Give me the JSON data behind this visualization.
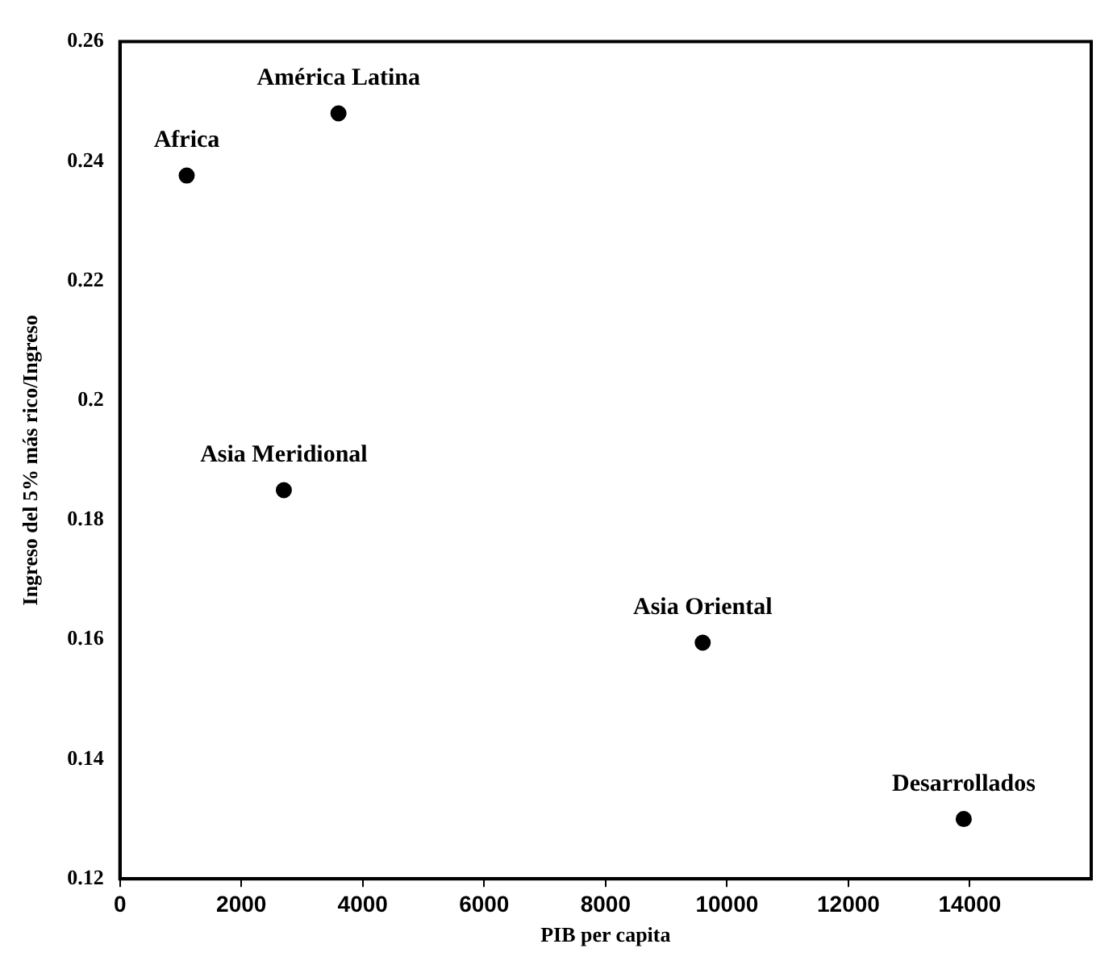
{
  "chart_data": {
    "type": "scatter",
    "xlabel": "PIB per capita",
    "ylabel": "Ingreso del 5% más rico/Ingreso",
    "x": [
      1100,
      3600,
      2700,
      9600,
      13900
    ],
    "series": [
      {
        "color": "#000000",
        "values": [
          0.2376,
          0.248,
          0.185,
          0.1595,
          0.13
        ]
      }
    ],
    "xlim": [
      0,
      16000
    ],
    "xticks": [
      0,
      2000,
      4000,
      6000,
      8000,
      10000,
      12000,
      14000
    ],
    "ylim": [
      0.12,
      0.26
    ],
    "yticks": [
      0.12,
      0.14,
      0.16,
      0.18,
      0.2,
      0.22,
      0.24,
      0.26
    ],
    "grid": false,
    "legend": false,
    "marker": "circle",
    "annotations": [
      {
        "text": "Africa",
        "x": 1100,
        "y": 0.2376
      },
      {
        "text": "América Latina",
        "x": 3600,
        "y": 0.248
      },
      {
        "text": "Asia Meridional",
        "x": 2700,
        "y": 0.185
      },
      {
        "text": "Asia Oriental",
        "x": 9600,
        "y": 0.1595
      },
      {
        "text": "Desarrollados",
        "x": 13900,
        "y": 0.13
      }
    ]
  }
}
